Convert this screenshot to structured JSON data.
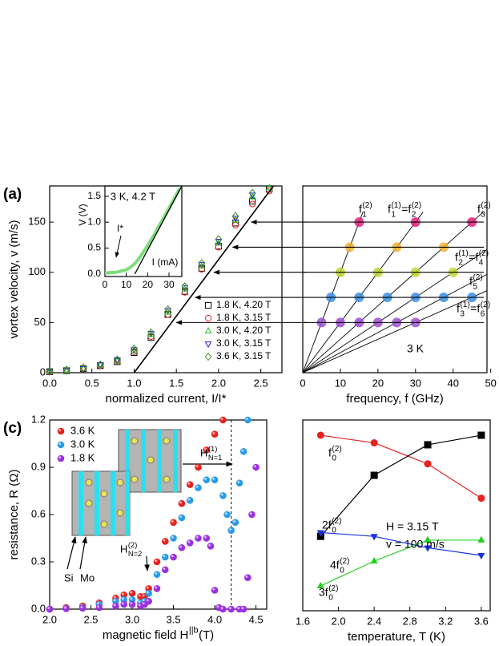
{
  "chart_data": [
    {
      "type": "scatter",
      "panel": "(a)",
      "xlabel": "normalized current, I/I*",
      "ylabel": "vortex velocity, v (m/s)",
      "xlim": [
        0,
        2.75
      ],
      "ylim": [
        0,
        186
      ],
      "xticks": [
        {
          "value": 0,
          "label": "0.0"
        },
        0.5,
        {
          "value": 1,
          "label": "1.0"
        },
        1.5,
        {
          "value": 2,
          "label": "2.0"
        },
        2.5
      ],
      "yticks": [
        0,
        50,
        100,
        150
      ],
      "legend": "lower right",
      "series": [
        {
          "name": "1.8 K, 4.20 T",
          "color": "#000000",
          "marker": "square",
          "filled": false,
          "x": [
            0,
            0.2,
            0.4,
            0.6,
            0.8,
            1.0,
            1.2,
            1.4,
            1.6,
            1.8,
            2.0,
            2.2,
            2.4,
            2.6
          ],
          "values": [
            1,
            2,
            4,
            7,
            11,
            20,
            35,
            58,
            81,
            104,
            126,
            149,
            171,
            183
          ]
        },
        {
          "name": "1.8 K, 3.15 T",
          "color": "#e02020",
          "marker": "circle",
          "filled": false,
          "x": [
            0,
            0.2,
            0.4,
            0.6,
            0.8,
            1.0,
            1.2,
            1.4,
            1.6,
            1.8,
            2.0,
            2.2,
            2.4,
            2.6
          ],
          "values": [
            1,
            2,
            4,
            7,
            12,
            21,
            36,
            58,
            80,
            103,
            125,
            147,
            168,
            181
          ]
        },
        {
          "name": "3.0 K, 4.20 T",
          "color": "#20c020",
          "marker": "triangle",
          "filled": false,
          "x": [
            0,
            0.2,
            0.4,
            0.6,
            0.8,
            1.0,
            1.2,
            1.4,
            1.6,
            1.8,
            2.0,
            2.2,
            2.4,
            2.6
          ],
          "values": [
            1,
            2,
            4,
            8,
            12,
            22,
            38,
            60,
            83,
            106,
            129,
            152,
            175,
            184
          ]
        },
        {
          "name": "3.0 K, 3.15 T",
          "color": "#2020e0",
          "marker": "tri-down",
          "filled": false,
          "x": [
            0,
            0.2,
            0.4,
            0.6,
            0.8,
            1.0,
            1.2,
            1.4,
            1.6,
            1.8,
            2.0,
            2.2,
            2.4
          ],
          "values": [
            1,
            2,
            4,
            8,
            13,
            23,
            39,
            62,
            85,
            108,
            131,
            154,
            177
          ]
        },
        {
          "name": "3.6 K, 3.15 T",
          "color": "#4a8a20",
          "marker": "diamond",
          "filled": false,
          "x": [
            0,
            0.2,
            0.4,
            0.6,
            0.8,
            1.0,
            1.2,
            1.4,
            1.6,
            1.8,
            2.0,
            2.2,
            2.4
          ],
          "values": [
            2,
            3,
            5,
            8,
            13,
            24,
            40,
            63,
            86,
            109,
            133,
            156,
            179
          ]
        }
      ],
      "fit": {
        "color": "#000000",
        "x": [
          1.0,
          2.65
        ],
        "values": [
          0,
          186
        ]
      }
    },
    {
      "type": "line",
      "title": "3 K, 4.2 T",
      "xlabel": "I (mA)",
      "ylabel": "V (V)",
      "xlim": [
        0,
        36
      ],
      "ylim": [
        -0.05,
        1.7
      ],
      "xticks": [
        0,
        10,
        20,
        30
      ],
      "yticks": [
        {
          "value": 0,
          "label": "0.0"
        },
        0.5,
        {
          "value": 1,
          "label": "1.0"
        },
        1.5
      ],
      "annotations": [
        "I*"
      ],
      "series": [
        {
          "color": "#7ddc7d",
          "x": [
            0,
            5,
            10,
            12,
            14,
            16,
            18,
            20,
            22,
            25,
            28,
            30,
            32,
            35
          ],
          "values": [
            0.02,
            0.03,
            0.08,
            0.13,
            0.2,
            0.3,
            0.42,
            0.55,
            0.68,
            0.9,
            1.12,
            1.27,
            1.42,
            1.65
          ]
        }
      ],
      "fit": {
        "color": "#000000",
        "x": [
          14,
          36
        ],
        "values": [
          0,
          1.7
        ]
      }
    },
    {
      "type": "scatter",
      "xlabel": "frequency, f (GHz)",
      "xlim": [
        0,
        49
      ],
      "ylim": [
        0,
        186
      ],
      "xticks": [
        0,
        10,
        20,
        30,
        40,
        50
      ],
      "yticks": [
        0,
        50,
        100,
        150
      ],
      "ytick_labels": false,
      "slopes": [
        0.1,
        0.2,
        0.3,
        0.4,
        0.5,
        0.6
      ],
      "line_labels": [
        {
          "text": "f",
          "sub": "1",
          "sup": "(2)"
        },
        [
          {
            "text": "f",
            "sub": "1",
            "sup": "(1)"
          },
          "=",
          {
            "text": "f",
            "sub": "2",
            "sup": "(2)"
          }
        ],
        {
          "text": "f",
          "sub": "3",
          "sup": "(2)"
        },
        [
          {
            "text": "f",
            "sub": "2",
            "sup": "(1)"
          },
          "=",
          {
            "text": "f",
            "sub": "4",
            "sup": "(2)"
          }
        ],
        {
          "text": "f",
          "sub": "5",
          "sup": "(2)"
        },
        [
          {
            "text": "f",
            "sub": "3",
            "sup": "(1)"
          },
          "=",
          {
            "text": "f",
            "sub": "6",
            "sup": "(2)"
          }
        ]
      ],
      "annotations": [
        "3 K"
      ],
      "series": [
        {
          "color": "#9b4fd0",
          "marker": "circle",
          "filled": true,
          "x": [
            5,
            10,
            15,
            20,
            25,
            30
          ],
          "values": [
            50,
            50,
            50,
            50,
            50,
            50
          ]
        },
        {
          "color": "#3a8ee0",
          "marker": "circle",
          "filled": true,
          "x": [
            7.5,
            15,
            22.5,
            30,
            37.5,
            45
          ],
          "values": [
            75,
            75,
            75,
            75,
            75,
            75
          ]
        },
        {
          "color": "#b8d830",
          "marker": "circle",
          "filled": true,
          "x": [
            10,
            20,
            30,
            40
          ],
          "values": [
            100,
            100,
            100,
            100
          ]
        },
        {
          "color": "#f0b030",
          "marker": "circle",
          "filled": true,
          "x": [
            12.5,
            25,
            37.5
          ],
          "values": [
            125,
            125,
            125
          ]
        },
        {
          "color": "#e0207a",
          "marker": "circle",
          "filled": true,
          "x": [
            15,
            30,
            45
          ],
          "values": [
            150,
            150,
            150
          ]
        }
      ]
    },
    {
      "type": "scatter",
      "panel": "(c)",
      "xlabel": {
        "text": "magnetic field H",
        "sup": "||b",
        "after": " (T)"
      },
      "ylabel": "resistance, R (Ω)",
      "xlim": [
        2.0,
        4.63
      ],
      "ylim": [
        0,
        1.2
      ],
      "xticks": [
        {
          "value": 2,
          "label": "2.0"
        },
        2.5,
        {
          "value": 3,
          "label": "3.0"
        },
        3.5,
        {
          "value": 4,
          "label": "4.0"
        },
        4.5
      ],
      "yticks": [
        {
          "value": 0,
          "label": "0.0"
        },
        0.3,
        0.6,
        0.9,
        1.2
      ],
      "legend": "upper left",
      "vline": 4.2,
      "annotations": [
        {
          "text": "H",
          "sub": "N=1",
          "sup": "(1)"
        },
        {
          "text": "H",
          "sub": "N=2",
          "sup": "(2)"
        },
        "Si",
        "Mo"
      ],
      "series": [
        {
          "name": "3.6 K",
          "color": "#e8201e",
          "marker": "sphere",
          "x": [
            2.0,
            2.2,
            2.4,
            2.6,
            2.8,
            2.9,
            3.0,
            3.1,
            3.15,
            3.2,
            3.3,
            3.4,
            3.5,
            3.6,
            3.7,
            3.8,
            3.9,
            4.0,
            4.1
          ],
          "values": [
            0.0,
            0.01,
            0.02,
            0.04,
            0.07,
            0.09,
            0.1,
            0.08,
            0.08,
            0.13,
            0.3,
            0.43,
            0.55,
            0.67,
            0.79,
            0.9,
            1.01,
            1.11,
            1.2
          ]
        },
        {
          "name": "3.0 K",
          "color": "#2a9ae8",
          "marker": "sphere",
          "x": [
            2.0,
            2.2,
            2.4,
            2.6,
            2.8,
            2.9,
            3.0,
            3.1,
            3.15,
            3.2,
            3.3,
            3.4,
            3.5,
            3.6,
            3.7,
            3.8,
            3.9,
            4.0,
            4.1,
            4.15,
            4.2,
            4.25,
            4.3,
            4.35,
            4.4
          ],
          "values": [
            0.0,
            0.005,
            0.01,
            0.03,
            0.05,
            0.06,
            0.06,
            0.04,
            0.05,
            0.1,
            0.22,
            0.33,
            0.45,
            0.58,
            0.69,
            0.77,
            0.82,
            0.82,
            0.72,
            0.6,
            0.5,
            0.55,
            0.8,
            1.0,
            1.2
          ]
        },
        {
          "name": "1.8 K",
          "color": "#9a30e0",
          "marker": "sphere",
          "x": [
            2.0,
            2.2,
            2.4,
            2.6,
            2.8,
            2.9,
            3.0,
            3.1,
            3.15,
            3.2,
            3.3,
            3.4,
            3.5,
            3.6,
            3.7,
            3.8,
            3.9,
            3.95,
            4.0,
            4.05,
            4.1,
            4.2,
            4.3,
            4.35,
            4.4,
            4.45,
            4.5
          ],
          "values": [
            0.0,
            0.003,
            0.006,
            0.01,
            0.02,
            0.03,
            0.03,
            0.02,
            0.03,
            0.05,
            0.13,
            0.25,
            0.33,
            0.39,
            0.42,
            0.45,
            0.45,
            0.4,
            0.12,
            0.01,
            0.0,
            0.0,
            0.0,
            0.0,
            0.2,
            0.6,
            0.9
          ]
        }
      ]
    },
    {
      "type": "line",
      "xlabel": "temperature, T (K)",
      "xlim": [
        1.6,
        3.7
      ],
      "ylim": [
        0,
        1
      ],
      "xticks": [
        1.6,
        {
          "value": 2,
          "label": "2.0"
        },
        2.4,
        2.8,
        3.2,
        3.6
      ],
      "annotations": [
        "H = 3.15 T",
        "v = 100 m/s"
      ],
      "series": [
        {
          "label": {
            "text": "f",
            "sub": "0",
            "sup": "(2)"
          },
          "color": "#e82020",
          "marker": "circle",
          "filled": true,
          "x": [
            1.8,
            2.4,
            3.0,
            3.6
          ],
          "values": [
            0.92,
            0.88,
            0.77,
            0.59
          ]
        },
        {
          "label": {
            "text": "2f",
            "sub": "0",
            "sup": "(2)"
          },
          "color": "#000000",
          "marker": "square",
          "filled": true,
          "x": [
            1.8,
            2.4,
            3.0,
            3.6
          ],
          "values": [
            0.39,
            0.71,
            0.87,
            0.92
          ]
        },
        {
          "label": {
            "text": "4f",
            "sub": "0",
            "sup": "(2)"
          },
          "color": "#1a30e0",
          "marker": "tri-down",
          "filled": true,
          "x": [
            1.8,
            2.4,
            3.0,
            3.6
          ],
          "values": [
            0.41,
            0.39,
            0.33,
            0.29
          ]
        },
        {
          "label": {
            "text": "3f",
            "sub": "0",
            "sup": "(2)"
          },
          "color": "#20d020",
          "marker": "triangle",
          "filled": true,
          "x": [
            1.8,
            2.4,
            3.0,
            3.6
          ],
          "values": [
            0.13,
            0.26,
            0.37,
            0.37
          ]
        }
      ]
    }
  ]
}
